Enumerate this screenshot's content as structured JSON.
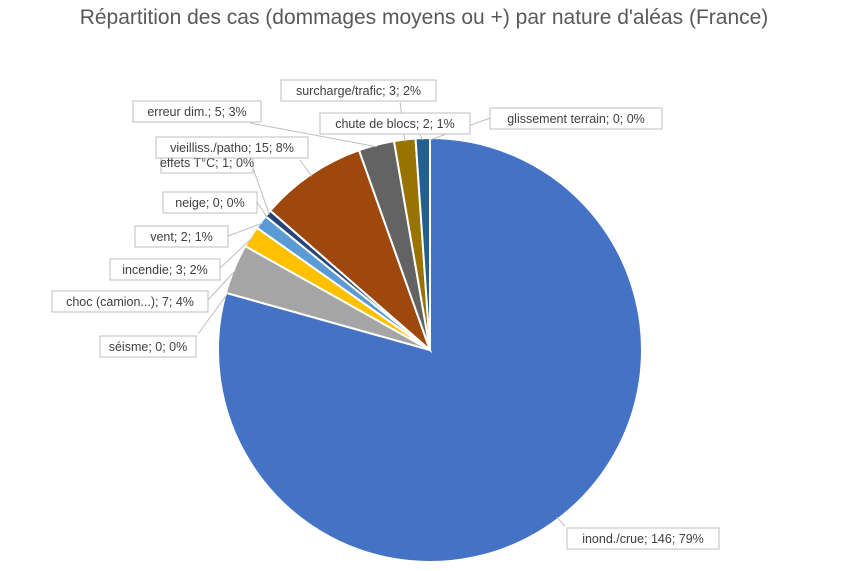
{
  "chart_data": {
    "type": "pie",
    "title": "Répartition des cas (dommages moyens ou +) par nature d'aléas (France)",
    "slices": [
      {
        "name": "inond./crue",
        "value": 146,
        "percent": "79%",
        "label": "inond./crue; 146; 79%",
        "color": "#4472C4"
      },
      {
        "name": "séisme",
        "value": 0,
        "percent": "0%",
        "label": "séisme; 0; 0%",
        "color": "#C55A11"
      },
      {
        "name": "choc (camion...)",
        "value": 7,
        "percent": "4%",
        "label": "choc (camion...); 7; 4%",
        "color": "#A5A5A5"
      },
      {
        "name": "incendie",
        "value": 3,
        "percent": "2%",
        "label": "incendie; 3; 2%",
        "color": "#FFC000"
      },
      {
        "name": "vent",
        "value": 2,
        "percent": "1%",
        "label": "vent; 2; 1%",
        "color": "#5B9BD5"
      },
      {
        "name": "neige",
        "value": 0,
        "percent": "0%",
        "label": "neige; 0; 0%",
        "color": "#70AD47"
      },
      {
        "name": "effets T°C",
        "value": 1,
        "percent": "0%",
        "label": "effets T°C; 1; 0%",
        "color": "#264478"
      },
      {
        "name": "vieilliss./patho",
        "value": 15,
        "percent": "8%",
        "label": "vieilliss./patho; 15; 8%",
        "color": "#9E480E"
      },
      {
        "name": "erreur dim.",
        "value": 5,
        "percent": "3%",
        "label": "erreur dim.; 5; 3%",
        "color": "#636363"
      },
      {
        "name": "surcharge/trafic",
        "value": 3,
        "percent": "2%",
        "label": "surcharge/trafic; 3; 2%",
        "color": "#997300"
      },
      {
        "name": "chute de blocs",
        "value": 2,
        "percent": "1%",
        "label": "chute de blocs; 2; 1%",
        "color": "#255E91"
      },
      {
        "name": "glissement terrain",
        "value": 0,
        "percent": "0%",
        "label": "glissement terrain; 0; 0%",
        "color": "#43682B"
      }
    ]
  }
}
